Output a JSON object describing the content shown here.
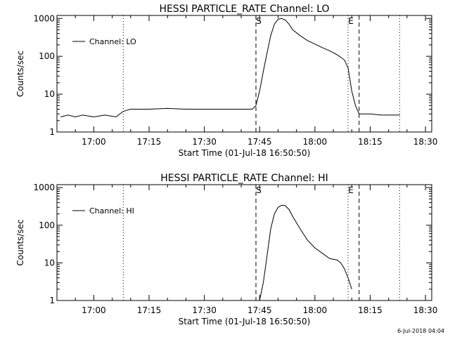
{
  "footer": {
    "timestamp": "6-Jul-2018 04:04"
  },
  "chart_data": [
    {
      "type": "line",
      "title": "HESSI PARTICLE_RATE Channel: LO",
      "xlabel": "Start Time (01-Jul-18 16:50:50)",
      "ylabel": "Counts/sec",
      "yscale": "log",
      "ylim": [
        1,
        1200
      ],
      "xlim_minutes_after_1650": [
        0,
        101.7
      ],
      "xticks": [
        "17:00",
        "17:15",
        "17:30",
        "17:45",
        "18:00",
        "18:15",
        "18:30"
      ],
      "yticks": [
        "1",
        "10",
        "100",
        "1000"
      ],
      "legend": {
        "position": "top-left",
        "entries": [
          "Channel: LO"
        ]
      },
      "markers": [
        {
          "label": "S",
          "style": "dashed",
          "time": "17:44"
        },
        {
          "label": "E",
          "style": "dotted",
          "time": "18:09"
        },
        {
          "label": "",
          "style": "dashed",
          "time": "18:12"
        },
        {
          "label": "",
          "style": "dotted",
          "time": "17:08"
        },
        {
          "label": "",
          "style": "dotted",
          "time": "18:23"
        }
      ],
      "series": [
        {
          "name": "Channel: LO",
          "x": [
            "16:51",
            "16:53",
            "16:55",
            "16:57",
            "17:00",
            "17:03",
            "17:06",
            "17:08",
            "17:10",
            "17:15",
            "17:20",
            "17:25",
            "17:30",
            "17:35",
            "17:40",
            "17:43",
            "17:44",
            "17:45",
            "17:46",
            "17:47",
            "17:48",
            "17:49",
            "17:50",
            "17:51",
            "17:52",
            "17:53",
            "17:54",
            "17:56",
            "17:58",
            "18:00",
            "18:02",
            "18:04",
            "18:06",
            "18:07",
            "18:08",
            "18:09",
            "18:10",
            "18:11",
            "18:12",
            "18:13",
            "18:15",
            "18:18",
            "18:20",
            "18:23"
          ],
          "y": [
            2.5,
            2.8,
            2.5,
            2.8,
            2.5,
            2.8,
            2.5,
            3.5,
            4,
            4,
            4.2,
            4,
            4,
            4,
            4,
            4,
            5,
            12,
            40,
            120,
            350,
            700,
            950,
            1000,
            900,
            700,
            500,
            350,
            260,
            210,
            170,
            140,
            110,
            95,
            80,
            50,
            12,
            5,
            3,
            3,
            3,
            2.8,
            2.8,
            2.8
          ]
        }
      ]
    },
    {
      "type": "line",
      "title": "HESSI PARTICLE_RATE Channel: HI",
      "xlabel": "Start Time (01-Jul-18 16:50:50)",
      "ylabel": "Counts/sec",
      "yscale": "log",
      "ylim": [
        1,
        1200
      ],
      "xlim_minutes_after_1650": [
        0,
        101.7
      ],
      "xticks": [
        "17:00",
        "17:15",
        "17:30",
        "17:45",
        "18:00",
        "18:15",
        "18:30"
      ],
      "yticks": [
        "1",
        "10",
        "100",
        "1000"
      ],
      "legend": {
        "position": "top-left",
        "entries": [
          "Channel: HI"
        ]
      },
      "markers": [
        {
          "label": "S",
          "style": "dashed",
          "time": "17:44"
        },
        {
          "label": "E",
          "style": "dotted",
          "time": "18:09"
        },
        {
          "label": "",
          "style": "dashed",
          "time": "18:12"
        },
        {
          "label": "",
          "style": "dotted",
          "time": "17:08"
        },
        {
          "label": "",
          "style": "dotted",
          "time": "18:23"
        }
      ],
      "series": [
        {
          "name": "Channel: HI",
          "x": [
            "17:45",
            "17:46",
            "17:47",
            "17:48",
            "17:49",
            "17:50",
            "17:51",
            "17:52",
            "17:53",
            "17:54",
            "17:56",
            "17:58",
            "18:00",
            "18:02",
            "18:04",
            "18:06",
            "18:07",
            "18:08",
            "18:09",
            "18:10"
          ],
          "y": [
            1,
            3,
            15,
            80,
            200,
            300,
            340,
            330,
            260,
            170,
            80,
            40,
            25,
            18,
            13,
            12,
            10,
            7,
            4,
            2
          ]
        }
      ]
    }
  ]
}
